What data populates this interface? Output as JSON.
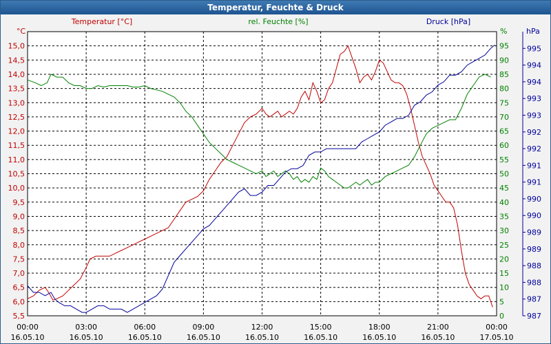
{
  "window": {
    "title": "Temperatur, Feuchte & Druck"
  },
  "colors": {
    "temperature": "#c00000",
    "humidity": "#008000",
    "pressure": "#00009c",
    "axis_text": "#000000"
  },
  "chart_data": {
    "type": "line",
    "title": "Temperatur, Feuchte & Druck",
    "x_ticks": [
      {
        "time": "00:00",
        "date": "16.05.10",
        "hour": 0
      },
      {
        "time": "03:00",
        "date": "16.05.10",
        "hour": 3
      },
      {
        "time": "06:00",
        "date": "16.05.10",
        "hour": 6
      },
      {
        "time": "09:00",
        "date": "16.05.10",
        "hour": 9
      },
      {
        "time": "12:00",
        "date": "16.05.10",
        "hour": 12
      },
      {
        "time": "15:00",
        "date": "16.05.10",
        "hour": 15
      },
      {
        "time": "18:00",
        "date": "16.05.10",
        "hour": 18
      },
      {
        "time": "21:00",
        "date": "16.05.10",
        "hour": 21
      },
      {
        "time": "00:00",
        "date": "17.05.10",
        "hour": 24
      }
    ],
    "xlim": [
      0,
      24
    ],
    "axes": {
      "temperature": {
        "label": "Temperatur [°C]",
        "unit": "°C",
        "ylim": [
          5.5,
          15.5
        ],
        "ticks": [
          "5,5",
          "6,0",
          "6,5",
          "7,0",
          "7,5",
          "8,0",
          "8,5",
          "9,0",
          "9,5",
          "10,0",
          "10,5",
          "11,0",
          "11,5",
          "12,0",
          "12,5",
          "13,0",
          "13,5",
          "14,0",
          "14,5",
          "15,0"
        ]
      },
      "humidity": {
        "label": "rel. Feuchte [%]",
        "unit": "%",
        "ylim": [
          0,
          100
        ],
        "ticks": [
          "0",
          "5",
          "10",
          "15",
          "20",
          "25",
          "30",
          "35",
          "40",
          "45",
          "50",
          "55",
          "60",
          "65",
          "70",
          "75",
          "80",
          "85",
          "90",
          "95"
        ]
      },
      "pressure": {
        "label": "Druck [hPa]",
        "unit": "hPa",
        "ylim": [
          987,
          995.5
        ],
        "ticks": [
          "987",
          "987",
          "988",
          "988",
          "989",
          "989",
          "990",
          "990",
          "991",
          "991",
          "992",
          "992",
          "993",
          "993",
          "994",
          "994",
          "995"
        ]
      }
    },
    "series": [
      {
        "name": "Temperatur",
        "axis": "temperature",
        "color": "#c00000",
        "points": [
          [
            0,
            6.1
          ],
          [
            0.3,
            6.2
          ],
          [
            0.6,
            6.4
          ],
          [
            0.9,
            6.5
          ],
          [
            1.1,
            6.3
          ],
          [
            1.3,
            6.05
          ],
          [
            1.5,
            6.1
          ],
          [
            1.8,
            6.2
          ],
          [
            2.1,
            6.4
          ],
          [
            2.4,
            6.6
          ],
          [
            2.7,
            6.8
          ],
          [
            3.0,
            7.2
          ],
          [
            3.2,
            7.5
          ],
          [
            3.5,
            7.6
          ],
          [
            3.8,
            7.6
          ],
          [
            4.2,
            7.6
          ],
          [
            4.5,
            7.7
          ],
          [
            4.8,
            7.8
          ],
          [
            5.1,
            7.9
          ],
          [
            5.4,
            8.0
          ],
          [
            5.7,
            8.1
          ],
          [
            6.0,
            8.2
          ],
          [
            6.3,
            8.3
          ],
          [
            6.6,
            8.4
          ],
          [
            6.9,
            8.5
          ],
          [
            7.2,
            8.6
          ],
          [
            7.5,
            8.9
          ],
          [
            7.8,
            9.2
          ],
          [
            8.1,
            9.5
          ],
          [
            8.4,
            9.6
          ],
          [
            8.7,
            9.7
          ],
          [
            9.0,
            9.9
          ],
          [
            9.3,
            10.3
          ],
          [
            9.6,
            10.6
          ],
          [
            9.9,
            10.9
          ],
          [
            10.2,
            11.1
          ],
          [
            10.5,
            11.5
          ],
          [
            10.8,
            11.9
          ],
          [
            11.1,
            12.3
          ],
          [
            11.4,
            12.5
          ],
          [
            11.7,
            12.6
          ],
          [
            12.0,
            12.8
          ],
          [
            12.2,
            12.6
          ],
          [
            12.4,
            12.5
          ],
          [
            12.6,
            12.6
          ],
          [
            12.8,
            12.7
          ],
          [
            13.0,
            12.5
          ],
          [
            13.2,
            12.6
          ],
          [
            13.4,
            12.7
          ],
          [
            13.6,
            12.6
          ],
          [
            13.8,
            12.8
          ],
          [
            14.0,
            13.2
          ],
          [
            14.2,
            13.4
          ],
          [
            14.4,
            13.1
          ],
          [
            14.6,
            13.7
          ],
          [
            14.8,
            13.4
          ],
          [
            15.0,
            13.0
          ],
          [
            15.2,
            13.1
          ],
          [
            15.4,
            13.5
          ],
          [
            15.6,
            13.7
          ],
          [
            15.8,
            14.2
          ],
          [
            16.0,
            14.7
          ],
          [
            16.2,
            14.8
          ],
          [
            16.4,
            15.0
          ],
          [
            16.6,
            14.6
          ],
          [
            16.8,
            14.2
          ],
          [
            17.0,
            13.7
          ],
          [
            17.2,
            13.9
          ],
          [
            17.4,
            14.0
          ],
          [
            17.6,
            13.8
          ],
          [
            17.8,
            14.1
          ],
          [
            18.0,
            14.5
          ],
          [
            18.2,
            14.4
          ],
          [
            18.4,
            14.1
          ],
          [
            18.6,
            13.8
          ],
          [
            18.8,
            13.7
          ],
          [
            19.0,
            13.7
          ],
          [
            19.2,
            13.6
          ],
          [
            19.4,
            13.3
          ],
          [
            19.6,
            12.8
          ],
          [
            19.8,
            12.2
          ],
          [
            20.0,
            11.6
          ],
          [
            20.2,
            11.1
          ],
          [
            20.4,
            10.8
          ],
          [
            20.6,
            10.5
          ],
          [
            20.8,
            10.1
          ],
          [
            21.0,
            9.9
          ],
          [
            21.2,
            9.7
          ],
          [
            21.4,
            9.5
          ],
          [
            21.6,
            9.5
          ],
          [
            21.8,
            9.3
          ],
          [
            22.0,
            8.7
          ],
          [
            22.2,
            7.8
          ],
          [
            22.4,
            7.0
          ],
          [
            22.6,
            6.6
          ],
          [
            22.8,
            6.4
          ],
          [
            23.0,
            6.2
          ],
          [
            23.2,
            6.1
          ],
          [
            23.4,
            6.2
          ],
          [
            23.6,
            6.2
          ],
          [
            23.8,
            5.8
          ]
        ]
      },
      {
        "name": "rel. Feuchte",
        "axis": "humidity",
        "color": "#008000",
        "points": [
          [
            0,
            83
          ],
          [
            0.4,
            82
          ],
          [
            0.7,
            81
          ],
          [
            1.0,
            82
          ],
          [
            1.2,
            85
          ],
          [
            1.5,
            84
          ],
          [
            1.8,
            84
          ],
          [
            2.1,
            82
          ],
          [
            2.4,
            81
          ],
          [
            2.7,
            81
          ],
          [
            3.0,
            80
          ],
          [
            3.3,
            80
          ],
          [
            3.6,
            81
          ],
          [
            3.9,
            80.5
          ],
          [
            4.2,
            81
          ],
          [
            4.5,
            81
          ],
          [
            4.8,
            81
          ],
          [
            5.1,
            81
          ],
          [
            5.4,
            80.5
          ],
          [
            5.7,
            80.5
          ],
          [
            6.0,
            81
          ],
          [
            6.3,
            80
          ],
          [
            6.6,
            79.5
          ],
          [
            6.9,
            79
          ],
          [
            7.2,
            78
          ],
          [
            7.5,
            77
          ],
          [
            7.8,
            75
          ],
          [
            8.1,
            72
          ],
          [
            8.4,
            70
          ],
          [
            8.7,
            67
          ],
          [
            9.0,
            64
          ],
          [
            9.3,
            61
          ],
          [
            9.6,
            59
          ],
          [
            9.9,
            57
          ],
          [
            10.2,
            55
          ],
          [
            10.5,
            54
          ],
          [
            10.8,
            53
          ],
          [
            11.1,
            52
          ],
          [
            11.4,
            51
          ],
          [
            11.7,
            50
          ],
          [
            12.0,
            51
          ],
          [
            12.2,
            49
          ],
          [
            12.4,
            50
          ],
          [
            12.6,
            51
          ],
          [
            12.8,
            49
          ],
          [
            13.0,
            50
          ],
          [
            13.2,
            51
          ],
          [
            13.4,
            50
          ],
          [
            13.6,
            48
          ],
          [
            13.8,
            49
          ],
          [
            14.0,
            47
          ],
          [
            14.2,
            48
          ],
          [
            14.4,
            47
          ],
          [
            14.6,
            49
          ],
          [
            14.8,
            48
          ],
          [
            15.0,
            52
          ],
          [
            15.2,
            51
          ],
          [
            15.4,
            49
          ],
          [
            15.6,
            48
          ],
          [
            15.8,
            47
          ],
          [
            16.0,
            46
          ],
          [
            16.2,
            45
          ],
          [
            16.4,
            45
          ],
          [
            16.6,
            46
          ],
          [
            16.8,
            47
          ],
          [
            17.0,
            46
          ],
          [
            17.2,
            47
          ],
          [
            17.4,
            48
          ],
          [
            17.6,
            46
          ],
          [
            17.8,
            47
          ],
          [
            18.0,
            47
          ],
          [
            18.3,
            49
          ],
          [
            18.6,
            50
          ],
          [
            18.9,
            51
          ],
          [
            19.2,
            52
          ],
          [
            19.5,
            53
          ],
          [
            19.8,
            56
          ],
          [
            20.1,
            60
          ],
          [
            20.4,
            64
          ],
          [
            20.7,
            66
          ],
          [
            21.0,
            67
          ],
          [
            21.3,
            68
          ],
          [
            21.6,
            69
          ],
          [
            21.9,
            69
          ],
          [
            22.2,
            73
          ],
          [
            22.5,
            78
          ],
          [
            22.8,
            81
          ],
          [
            23.1,
            84
          ],
          [
            23.4,
            85
          ],
          [
            23.7,
            84
          ]
        ]
      },
      {
        "name": "Druck",
        "axis": "pressure",
        "color": "#00009c",
        "points": [
          [
            0,
            987.9
          ],
          [
            0.3,
            987.7
          ],
          [
            0.6,
            987.7
          ],
          [
            0.9,
            987.6
          ],
          [
            1.2,
            987.7
          ],
          [
            1.4,
            987.5
          ],
          [
            1.6,
            987.4
          ],
          [
            1.9,
            987.3
          ],
          [
            2.2,
            987.3
          ],
          [
            2.5,
            987.2
          ],
          [
            2.8,
            987.1
          ],
          [
            3.0,
            987.1
          ],
          [
            3.3,
            987.2
          ],
          [
            3.6,
            987.3
          ],
          [
            3.9,
            987.3
          ],
          [
            4.2,
            987.2
          ],
          [
            4.5,
            987.2
          ],
          [
            4.8,
            987.2
          ],
          [
            5.1,
            987.1
          ],
          [
            5.4,
            987.2
          ],
          [
            5.7,
            987.3
          ],
          [
            6.0,
            987.4
          ],
          [
            6.3,
            987.5
          ],
          [
            6.6,
            987.6
          ],
          [
            6.9,
            987.8
          ],
          [
            7.2,
            988.2
          ],
          [
            7.5,
            988.6
          ],
          [
            7.8,
            988.8
          ],
          [
            8.1,
            989.0
          ],
          [
            8.4,
            989.2
          ],
          [
            8.7,
            989.4
          ],
          [
            9.0,
            989.6
          ],
          [
            9.3,
            989.7
          ],
          [
            9.6,
            989.9
          ],
          [
            9.9,
            990.1
          ],
          [
            10.2,
            990.3
          ],
          [
            10.5,
            990.5
          ],
          [
            10.8,
            990.7
          ],
          [
            11.1,
            990.8
          ],
          [
            11.4,
            990.6
          ],
          [
            11.7,
            990.6
          ],
          [
            12.0,
            990.7
          ],
          [
            12.3,
            990.9
          ],
          [
            12.6,
            990.9
          ],
          [
            12.9,
            991.1
          ],
          [
            13.2,
            991.3
          ],
          [
            13.5,
            991.4
          ],
          [
            13.8,
            991.4
          ],
          [
            14.1,
            991.5
          ],
          [
            14.4,
            991.8
          ],
          [
            14.7,
            991.9
          ],
          [
            15.0,
            991.9
          ],
          [
            15.3,
            992.0
          ],
          [
            15.6,
            992.0
          ],
          [
            15.9,
            992.0
          ],
          [
            16.2,
            992.0
          ],
          [
            16.5,
            992.0
          ],
          [
            16.8,
            992.0
          ],
          [
            17.1,
            992.2
          ],
          [
            17.4,
            992.3
          ],
          [
            17.7,
            992.4
          ],
          [
            18.0,
            992.5
          ],
          [
            18.3,
            992.7
          ],
          [
            18.6,
            992.8
          ],
          [
            18.9,
            992.9
          ],
          [
            19.2,
            992.9
          ],
          [
            19.5,
            993.0
          ],
          [
            19.8,
            993.3
          ],
          [
            20.1,
            993.4
          ],
          [
            20.4,
            993.6
          ],
          [
            20.7,
            993.7
          ],
          [
            21.0,
            993.9
          ],
          [
            21.3,
            994.0
          ],
          [
            21.6,
            994.2
          ],
          [
            21.9,
            994.2
          ],
          [
            22.2,
            994.3
          ],
          [
            22.5,
            994.5
          ],
          [
            22.8,
            994.6
          ],
          [
            23.1,
            994.7
          ],
          [
            23.4,
            994.8
          ],
          [
            23.7,
            995.0
          ],
          [
            23.9,
            995.1
          ]
        ]
      }
    ]
  }
}
